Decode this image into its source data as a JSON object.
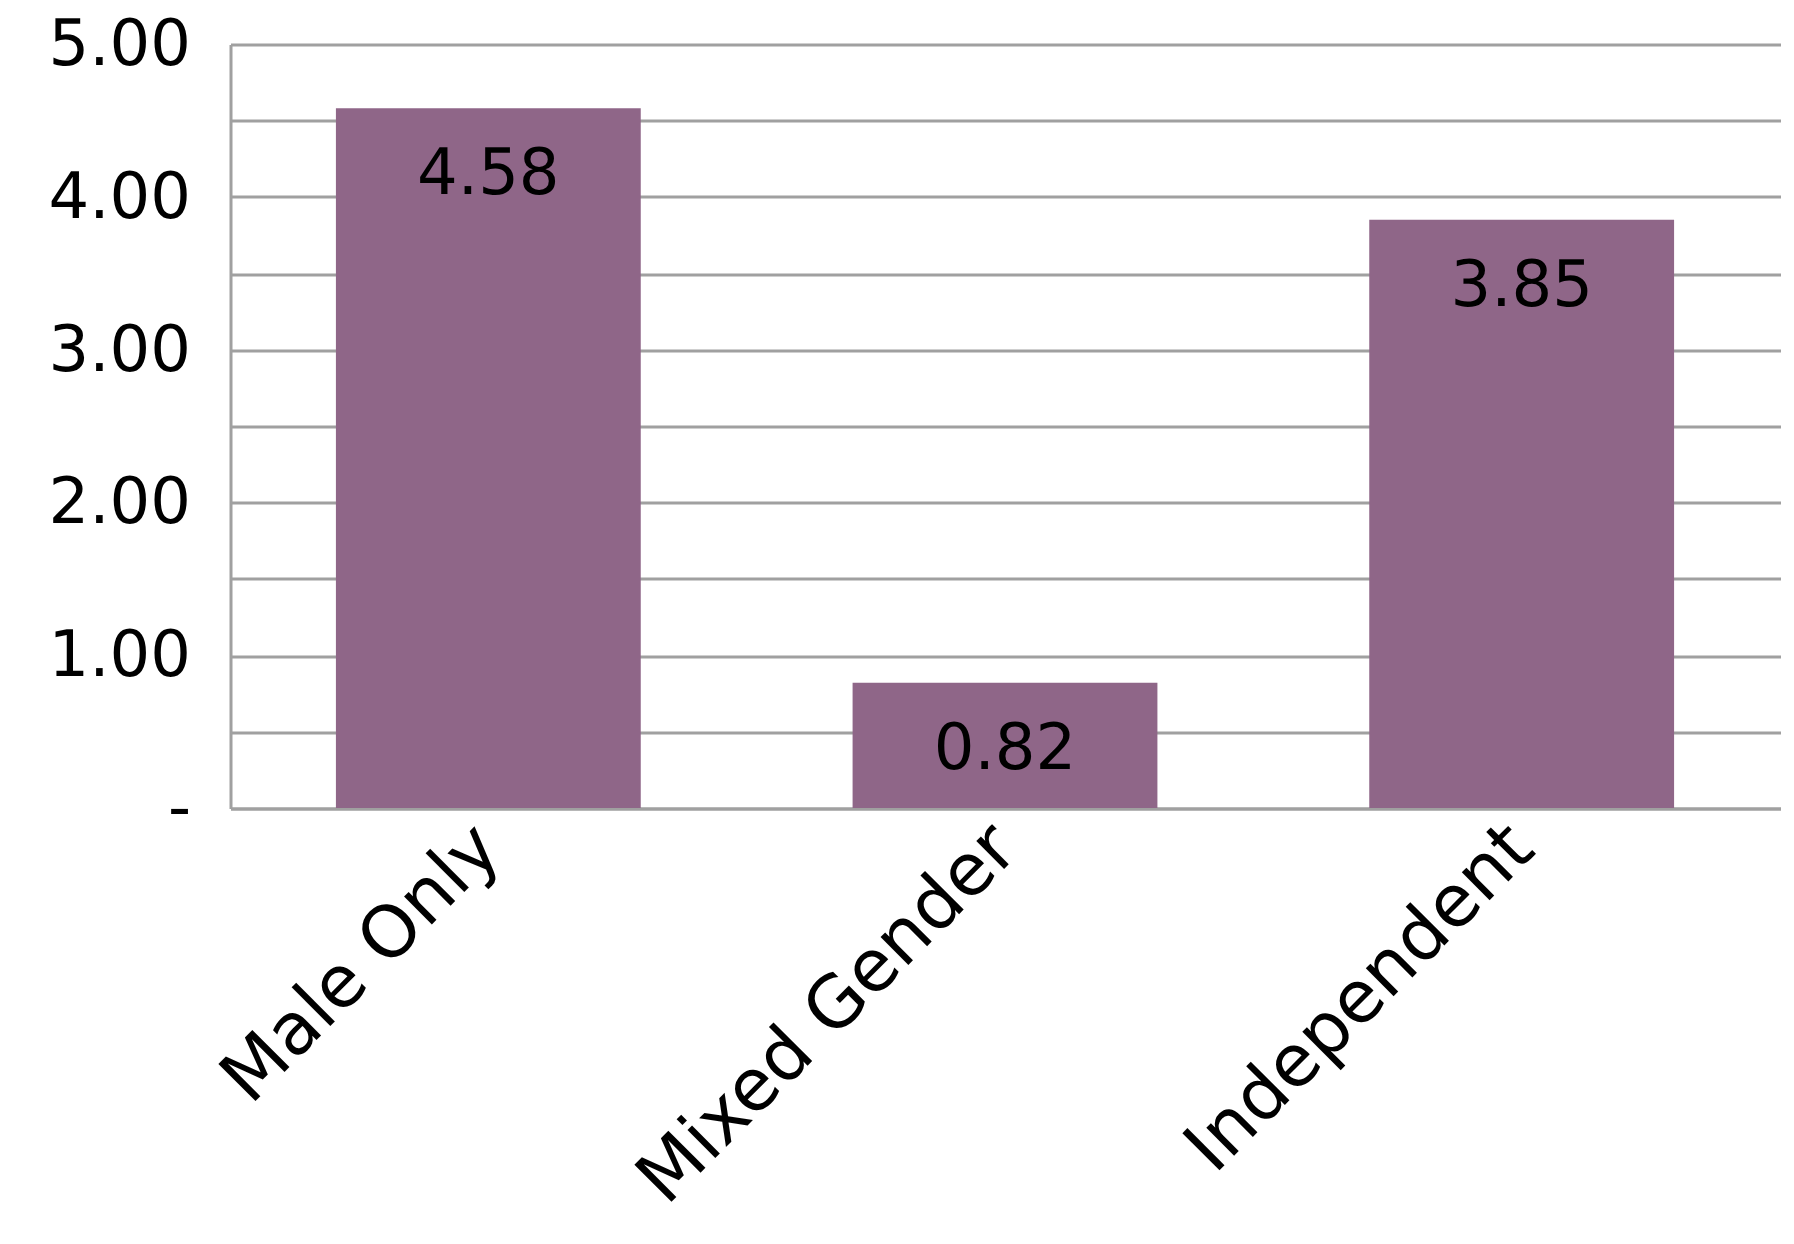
{
  "chart_data": {
    "type": "bar",
    "categories": [
      "Male Only",
      "Mixed Gender",
      "Independent"
    ],
    "values": [
      4.58,
      0.82,
      3.85
    ],
    "color": "#8f6688",
    "ylim": [
      0,
      5
    ],
    "yticks": [
      {
        "value": 0,
        "label": "-"
      },
      {
        "value": 0.5,
        "label": null
      },
      {
        "value": 1,
        "label": "1.00"
      },
      {
        "value": 1.5,
        "label": null
      },
      {
        "value": 2,
        "label": "2.00"
      },
      {
        "value": 2.5,
        "label": null
      },
      {
        "value": 3,
        "label": "3.00"
      },
      {
        "value": 3.5,
        "label": null
      },
      {
        "value": 4,
        "label": "4.00"
      },
      {
        "value": 4.5,
        "label": null
      },
      {
        "value": 5,
        "label": "5.00"
      }
    ],
    "grid": "y",
    "data_labels": true
  }
}
